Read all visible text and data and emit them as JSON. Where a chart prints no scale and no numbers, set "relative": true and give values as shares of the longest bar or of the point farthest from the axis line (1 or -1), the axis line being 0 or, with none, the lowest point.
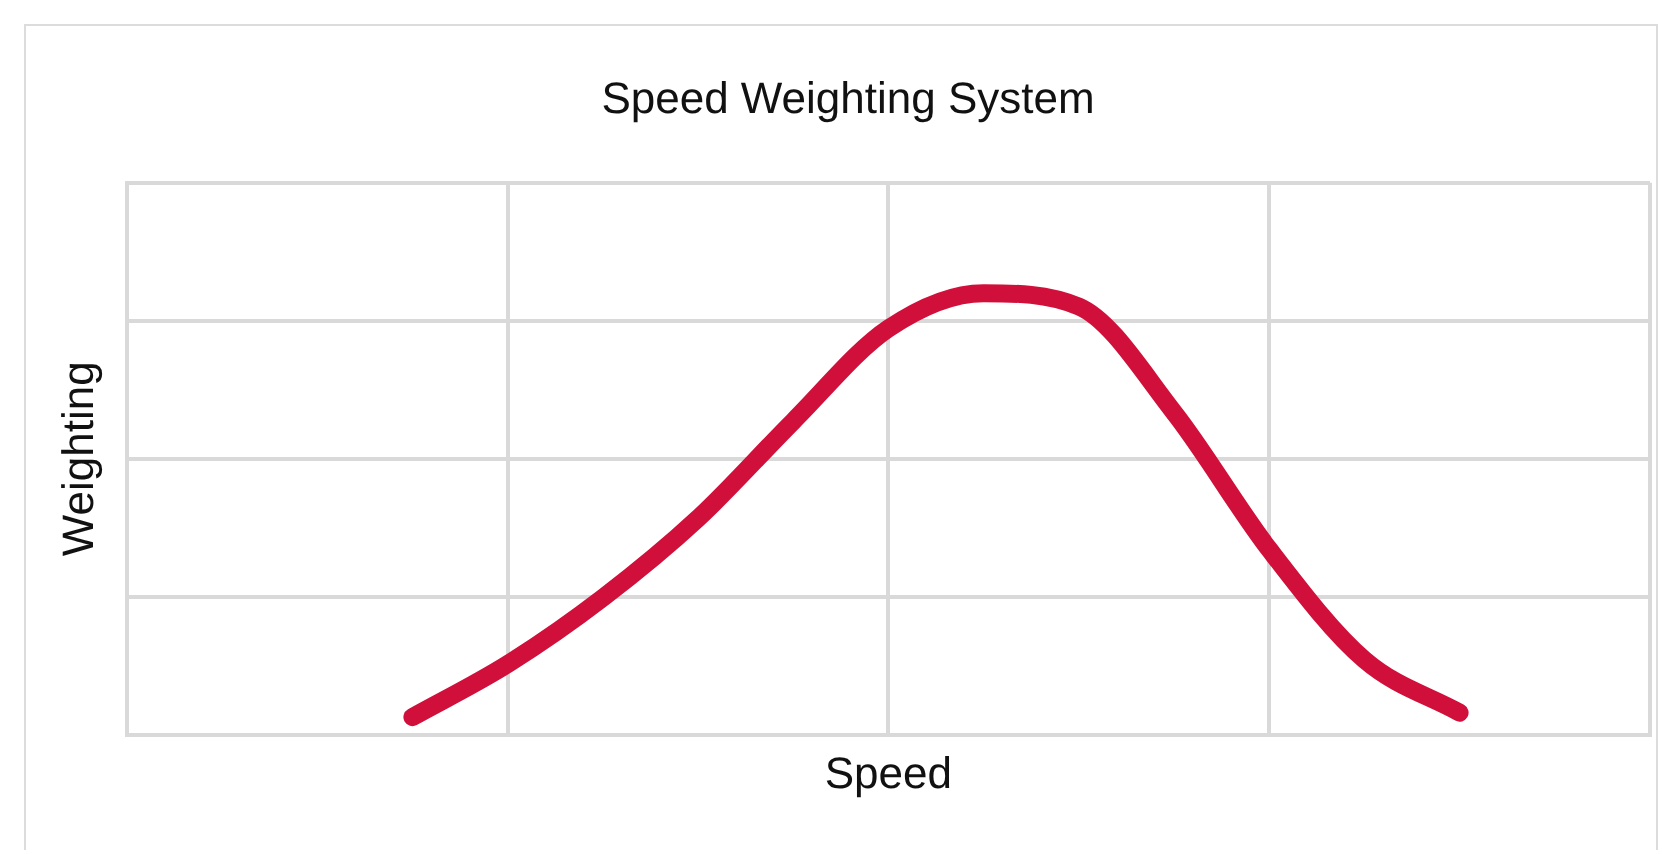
{
  "chart_data": {
    "type": "line",
    "title": "Speed Weighting System",
    "xlabel": "Speed",
    "ylabel": "Weighting",
    "relative": true,
    "grid": true,
    "legend": false,
    "marker": "none",
    "line_style": "solid",
    "categories": [
      null,
      null,
      null,
      null,
      null,
      null,
      null,
      null,
      null,
      null,
      null,
      null,
      null,
      null,
      null,
      null,
      null
    ],
    "series": [
      {
        "color": "#d0103a",
        "values": [
          null,
          null,
          null,
          0.04,
          0.16,
          0.31,
          0.49,
          0.71,
          0.92,
          1,
          0.97,
          0.73,
          0.42,
          0.17,
          0.05,
          null,
          null
        ]
      }
    ]
  }
}
